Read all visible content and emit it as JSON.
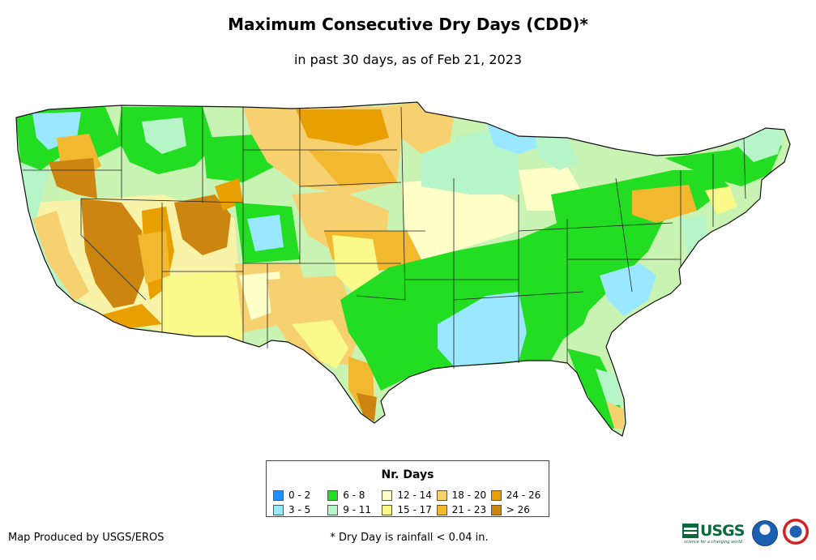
{
  "title": "Maximum Consecutive Dry Days (CDD)*",
  "subtitle": "in past 30 days, as of Feb 21, 2023",
  "legend": {
    "title": "Nr. Days",
    "items": [
      {
        "label": "0 - 2",
        "color": "#1e90ff"
      },
      {
        "label": "6 - 8",
        "color": "#22dd22"
      },
      {
        "label": "12 - 14",
        "color": "#ffffc8"
      },
      {
        "label": "18 - 20",
        "color": "#f7d070"
      },
      {
        "label": "24 - 26",
        "color": "#e8a000"
      },
      {
        "label": "3 - 5",
        "color": "#99e8ff"
      },
      {
        "label": "9 - 11",
        "color": "#b5f5c8"
      },
      {
        "label": "15 - 17",
        "color": "#fafa8a"
      },
      {
        "label": "21 - 23",
        "color": "#f2b830"
      },
      {
        "label": "> 26",
        "color": "#cc8510"
      }
    ]
  },
  "credit": "Map Produced by USGS/EROS",
  "footnote": "* Dry Day is rainfall < 0.04 in.",
  "logos": {
    "usgs": "USGS",
    "usgs_tagline": "science for a changing world"
  }
}
